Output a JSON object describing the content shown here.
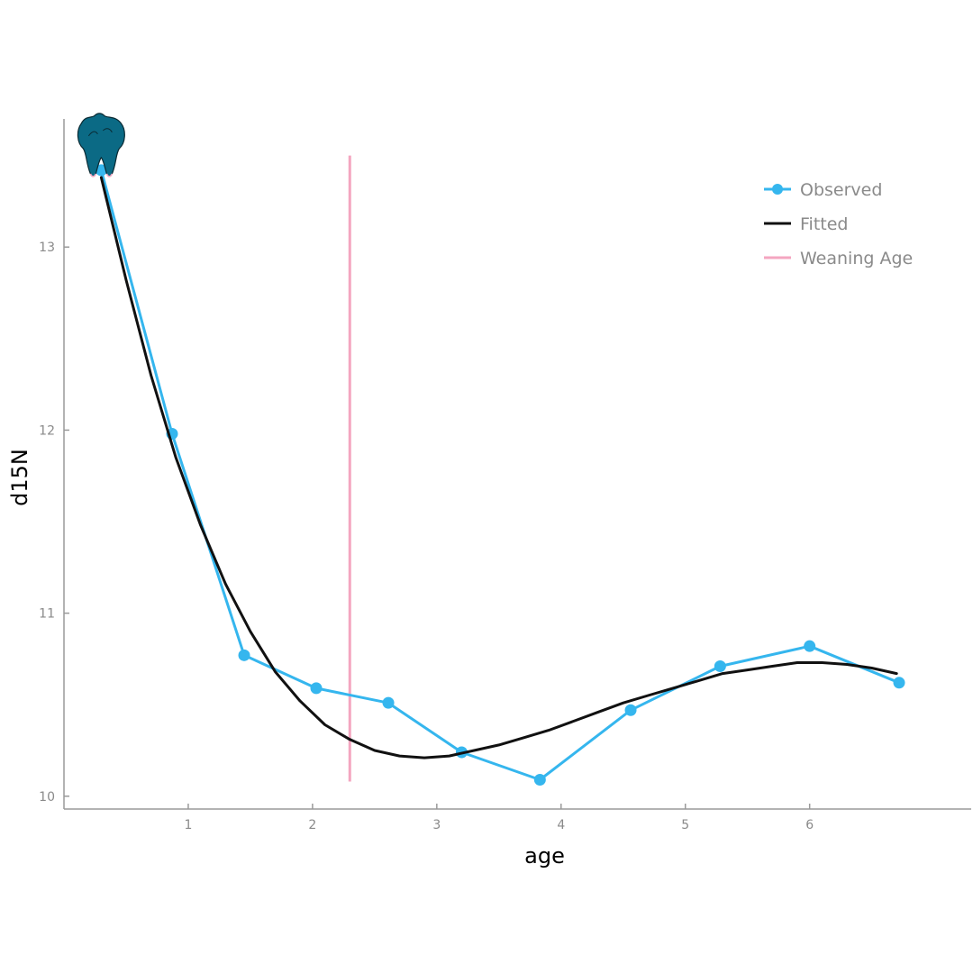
{
  "chart_data": {
    "type": "line",
    "xlabel": "age",
    "ylabel": "d15N",
    "xlim": [
      0,
      7.3
    ],
    "ylim": [
      9.93,
      13.7
    ],
    "xticks": [
      1,
      2,
      3,
      4,
      5,
      6
    ],
    "yticks": [
      10,
      11,
      12,
      13
    ],
    "grid": false,
    "legend_position": "top-right",
    "series": [
      {
        "name": "Observed",
        "kind": "line+markers",
        "color": "#35b6ee",
        "x": [
          0.3,
          0.87,
          1.45,
          2.03,
          2.61,
          3.2,
          3.83,
          4.56,
          5.28,
          6.0,
          6.72
        ],
        "y": [
          13.42,
          11.98,
          10.77,
          10.59,
          10.51,
          10.24,
          10.09,
          10.47,
          10.71,
          10.82,
          10.62
        ]
      },
      {
        "name": "Fitted",
        "kind": "line",
        "color": "#111111",
        "x": [
          0.3,
          0.5,
          0.7,
          0.9,
          1.1,
          1.3,
          1.5,
          1.7,
          1.9,
          2.1,
          2.3,
          2.5,
          2.7,
          2.9,
          3.1,
          3.3,
          3.5,
          3.7,
          3.9,
          4.1,
          4.3,
          4.5,
          4.7,
          4.9,
          5.1,
          5.3,
          5.5,
          5.7,
          5.9,
          6.1,
          6.3,
          6.5,
          6.7
        ],
        "y": [
          13.38,
          12.82,
          12.3,
          11.85,
          11.48,
          11.16,
          10.9,
          10.68,
          10.52,
          10.39,
          10.31,
          10.25,
          10.22,
          10.21,
          10.22,
          10.25,
          10.28,
          10.32,
          10.36,
          10.41,
          10.46,
          10.51,
          10.55,
          10.59,
          10.63,
          10.67,
          10.69,
          10.71,
          10.73,
          10.73,
          10.72,
          10.7,
          10.67
        ]
      },
      {
        "name": "Weaning Age",
        "kind": "vline",
        "color": "#f4a6c0",
        "x": 2.3,
        "y_range": [
          10.08,
          13.5
        ]
      }
    ],
    "icons": [
      {
        "name": "tooth-icon",
        "x": 0.3,
        "y": 13.42,
        "color": "#0b6a85"
      }
    ]
  }
}
